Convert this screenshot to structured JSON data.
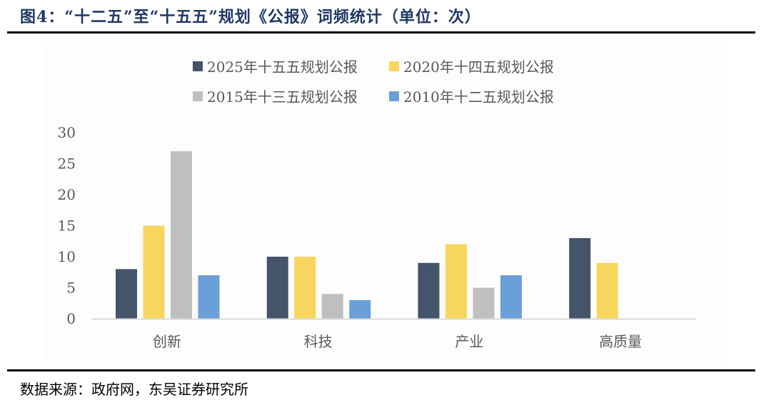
{
  "header": {
    "title": "图4：“十二五”至“十五五”规划《公报》词频统计（单位：次）"
  },
  "footer": {
    "source": "数据来源：政府网，东吴证券研究所"
  },
  "chart_data": {
    "type": "bar",
    "categories": [
      "创新",
      "科技",
      "产业",
      "高质量"
    ],
    "series": [
      {
        "name": "2025年十五五规划公报",
        "values": [
          8,
          10,
          9,
          13
        ],
        "color": "#44546a"
      },
      {
        "name": "2020年十四五规划公报",
        "values": [
          15,
          10,
          12,
          9
        ],
        "color": "#f8d65e"
      },
      {
        "name": "2015年十三五规划公报",
        "values": [
          27,
          4,
          5,
          0
        ],
        "color": "#bfbfbf"
      },
      {
        "name": "2010年十二五规划公报",
        "values": [
          7,
          3,
          7,
          0
        ],
        "color": "#6a9fd8"
      }
    ],
    "yticks": [
      "0",
      "5",
      "10",
      "15",
      "20",
      "25",
      "30"
    ],
    "ylim": [
      0,
      30
    ],
    "grid": false,
    "legend": "top"
  }
}
